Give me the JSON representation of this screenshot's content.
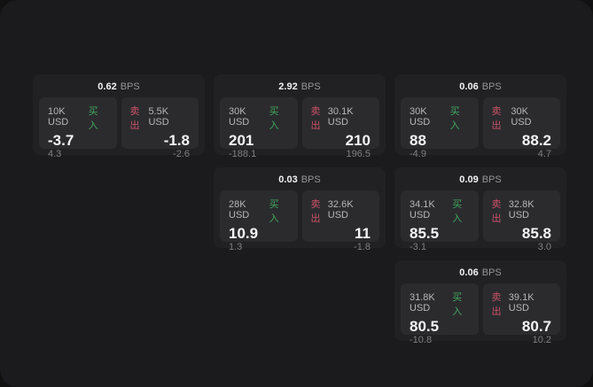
{
  "labels": {
    "bps_suffix": "BPS",
    "buy": "买入",
    "sell": "卖出"
  },
  "colors": {
    "buy": "#40a85e",
    "sell": "#cb5268"
  },
  "cards": [
    {
      "row": 1,
      "col": 1,
      "bps": "0.62",
      "buy": {
        "notional": "10K USD",
        "price": "-3.7",
        "change": "4.3"
      },
      "sell": {
        "notional": "5.5K USD",
        "price": "-1.8",
        "change": "-2.6"
      }
    },
    {
      "row": 1,
      "col": 2,
      "bps": "2.92",
      "buy": {
        "notional": "30K USD",
        "price": "201",
        "change": "-188.1"
      },
      "sell": {
        "notional": "30.1K USD",
        "price": "210",
        "change": "196.5"
      }
    },
    {
      "row": 1,
      "col": 3,
      "bps": "0.06",
      "buy": {
        "notional": "30K USD",
        "price": "88",
        "change": "-4.9"
      },
      "sell": {
        "notional": "30K USD",
        "price": "88.2",
        "change": "4.7"
      }
    },
    {
      "row": 2,
      "col": 2,
      "bps": "0.03",
      "buy": {
        "notional": "28K USD",
        "price": "10.9",
        "change": "1.3"
      },
      "sell": {
        "notional": "32.6K USD",
        "price": "11",
        "change": "-1.8"
      }
    },
    {
      "row": 2,
      "col": 3,
      "bps": "0.09",
      "buy": {
        "notional": "34.1K USD",
        "price": "85.5",
        "change": "-3.1"
      },
      "sell": {
        "notional": "32.8K USD",
        "price": "85.8",
        "change": "3.0"
      }
    },
    {
      "row": 3,
      "col": 3,
      "bps": "0.06",
      "buy": {
        "notional": "31.8K USD",
        "price": "80.5",
        "change": "-10.8"
      },
      "sell": {
        "notional": "39.1K USD",
        "price": "80.7",
        "change": "10.2"
      }
    }
  ]
}
